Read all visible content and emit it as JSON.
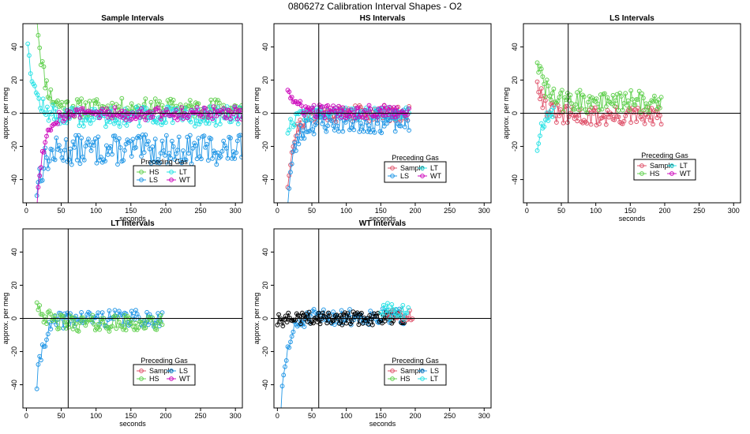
{
  "title": "080627z   Calibration Interval Shapes - O2",
  "colors": {
    "Sample": "#df536b",
    "HS": "#61d04f",
    "LS": "#2297e6",
    "LT": "#28e2e5",
    "WT": "#cd0bbc",
    "self": "#000000"
  },
  "chart_data": [
    {
      "id": "sample",
      "type": "scatter",
      "title": "Sample Intervals",
      "xlabel": "seconds",
      "ylabel": "approx. per meg",
      "xlim": [
        -5,
        310
      ],
      "ylim": [
        -54,
        54
      ],
      "xticks": [
        0,
        50,
        100,
        150,
        200,
        250,
        300
      ],
      "yticks": [
        -40,
        -20,
        0,
        20,
        40
      ],
      "vline": 60,
      "hline": 0,
      "legend": {
        "title": "Preceding Gas",
        "entries": [
          "HS",
          "LT",
          "LS",
          "WT"
        ],
        "columns": 2,
        "position": "bottom-right"
      },
      "series": [
        {
          "name": "HS",
          "x_start": 15,
          "x_end": 310,
          "baseline": 3,
          "spread": 6,
          "start": 60,
          "seed": 11
        },
        {
          "name": "LT",
          "x_start": 2,
          "x_end": 310,
          "baseline": -2,
          "spread": 6,
          "start": 45,
          "seed": 12
        },
        {
          "name": "LS",
          "x_start": 15,
          "x_end": 310,
          "baseline": -22,
          "spread": 9,
          "start": -45,
          "seed": 13
        },
        {
          "name": "WT",
          "x_start": 15,
          "x_end": 310,
          "baseline": 0,
          "spread": 4,
          "start": -55,
          "seed": 14
        }
      ]
    },
    {
      "id": "hs",
      "type": "scatter",
      "title": "HS Intervals",
      "xlabel": "seconds",
      "ylabel": "approx. per meg",
      "xlim": [
        -5,
        310
      ],
      "ylim": [
        -54,
        54
      ],
      "xticks": [
        0,
        50,
        100,
        150,
        200,
        250,
        300
      ],
      "yticks": [
        -40,
        -20,
        0,
        20,
        40
      ],
      "vline": 60,
      "hline": 0,
      "legend": {
        "title": "Preceding Gas",
        "entries": [
          "Sample",
          "LT",
          "LS",
          "WT"
        ],
        "columns": 2,
        "position": "bottom-right"
      },
      "series": [
        {
          "name": "Sample",
          "x_start": 15,
          "x_end": 192,
          "baseline": 0,
          "spread": 5,
          "start": -42,
          "seed": 21
        },
        {
          "name": "LT",
          "x_start": 15,
          "x_end": 192,
          "baseline": 0,
          "spread": 4,
          "start": -10,
          "seed": 22
        },
        {
          "name": "LS",
          "x_start": 15,
          "x_end": 192,
          "baseline": -5,
          "spread": 7,
          "start": -52,
          "seed": 23
        },
        {
          "name": "WT",
          "x_start": 15,
          "x_end": 192,
          "baseline": 1,
          "spread": 4,
          "start": 16,
          "seed": 24
        }
      ]
    },
    {
      "id": "ls",
      "type": "scatter",
      "title": "LS Intervals",
      "xlabel": "seconds",
      "ylabel": "approx. per meg",
      "xlim": [
        -5,
        310
      ],
      "ylim": [
        -54,
        54
      ],
      "xticks": [
        0,
        50,
        100,
        150,
        200,
        250,
        300
      ],
      "yticks": [
        -40,
        -20,
        0,
        20,
        40
      ],
      "vline": 60,
      "hline": 0,
      "legend": {
        "title": "Preceding Gas",
        "entries": [
          "Sample",
          "LT",
          "HS",
          "WT"
        ],
        "columns": 2,
        "position": "bottom-right"
      },
      "series": [
        {
          "name": "Sample",
          "x_start": 15,
          "x_end": 195,
          "baseline": -2,
          "spread": 6,
          "start": 22,
          "seed": 31
        },
        {
          "name": "HS",
          "x_start": 15,
          "x_end": 195,
          "baseline": 7,
          "spread": 7,
          "start": 34,
          "seed": 32
        },
        {
          "name": "LT",
          "x_start": 15,
          "x_end": 40,
          "baseline": 2,
          "spread": 5,
          "start": -20,
          "seed": 33
        }
      ]
    },
    {
      "id": "lt",
      "type": "scatter",
      "title": "LT Intervals",
      "xlabel": "seconds",
      "ylabel": "approx. per meg",
      "xlim": [
        -5,
        310
      ],
      "ylim": [
        -54,
        54
      ],
      "xticks": [
        0,
        50,
        100,
        150,
        200,
        250,
        300
      ],
      "yticks": [
        -40,
        -20,
        0,
        20,
        40
      ],
      "vline": 60,
      "hline": 0,
      "legend": {
        "title": "Preceding Gas",
        "entries": [
          "Sample",
          "LS",
          "HS",
          "WT"
        ],
        "columns": 2,
        "position": "bottom-right"
      },
      "series": [
        {
          "name": "LS",
          "x_start": 15,
          "x_end": 195,
          "baseline": 0,
          "spread": 5,
          "start": -40,
          "seed": 41
        },
        {
          "name": "HS",
          "x_start": 15,
          "x_end": 195,
          "baseline": -3,
          "spread": 5,
          "start": 12,
          "seed": 42
        }
      ]
    },
    {
      "id": "wt",
      "type": "scatter",
      "title": "WT Intervals",
      "xlabel": "seconds",
      "ylabel": "approx. per meg",
      "xlim": [
        -5,
        310
      ],
      "ylim": [
        -54,
        54
      ],
      "xticks": [
        0,
        50,
        100,
        150,
        200,
        250,
        300
      ],
      "yticks": [
        -40,
        -20,
        0,
        20,
        40
      ],
      "vline": 60,
      "hline": 0,
      "legend": {
        "title": "Preceding Gas",
        "entries": [
          "Sample",
          "LS",
          "HS",
          "LT"
        ],
        "columns": 2,
        "position": "bottom-right"
      },
      "series": [
        {
          "name": "LS",
          "x_start": 5,
          "x_end": 185,
          "baseline": 1,
          "spread": 5,
          "start": -55,
          "seed": 51
        },
        {
          "name": "self",
          "x_start": 0,
          "x_end": 185,
          "baseline": 0,
          "spread": 4,
          "start": -2,
          "seed": 52
        },
        {
          "name": "Sample",
          "x_start": 160,
          "x_end": 197,
          "baseline": 2,
          "spread": 4,
          "start": 5,
          "seed": 53
        },
        {
          "name": "LT",
          "x_start": 150,
          "x_end": 190,
          "baseline": 3,
          "spread": 5,
          "start": 6,
          "seed": 54
        }
      ]
    }
  ]
}
